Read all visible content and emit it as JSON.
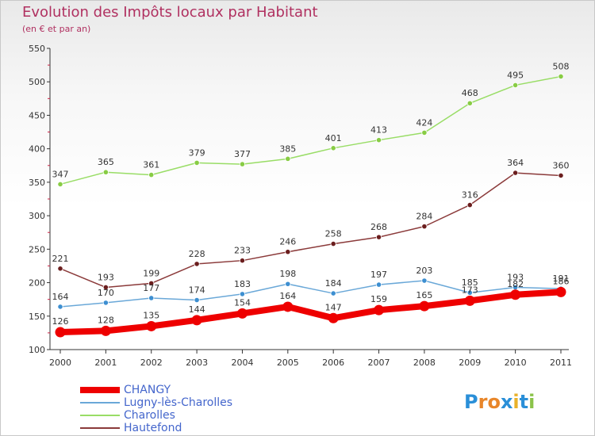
{
  "title": "Evolution des Impôts locaux par Habitant",
  "subtitle": "(en € et par an)",
  "logo": {
    "text": "Proxiti",
    "letters": [
      "P",
      "r",
      "o",
      "x",
      "i",
      "t",
      "i"
    ],
    "letter_colors": [
      "#2a8fd8",
      "#e8862a",
      "#e8862a",
      "#2a8fd8",
      "#e8b12a",
      "#2a8fd8",
      "#8bc34a"
    ]
  },
  "chart_data": {
    "type": "line",
    "categories": [
      "2000",
      "2001",
      "2002",
      "2003",
      "2004",
      "2005",
      "2006",
      "2007",
      "2008",
      "2009",
      "2010",
      "2011"
    ],
    "ylim": [
      100,
      550
    ],
    "yticks": [
      100,
      150,
      200,
      250,
      300,
      350,
      400,
      450,
      500,
      550
    ],
    "grid": false,
    "legend_position": "bottom-left",
    "series": [
      {
        "name": "Charolles",
        "color": "#99dd66",
        "marker_color": "#88cc44",
        "values": [
          347,
          365,
          361,
          379,
          377,
          385,
          401,
          413,
          424,
          468,
          495,
          508
        ],
        "labels": [
          "347",
          "365",
          "361",
          "379",
          "377",
          "385",
          "401",
          "413",
          "424",
          "468",
          "495",
          "508"
        ]
      },
      {
        "name": "Hautefond",
        "color": "#8b3a3a",
        "marker_color": "#6b1e1e",
        "values": [
          221,
          193,
          199,
          228,
          233,
          246,
          258,
          268,
          284,
          316,
          364,
          360
        ],
        "labels": [
          "221",
          "193",
          "199",
          "228",
          "233",
          "246",
          "258",
          "268",
          "284",
          "316",
          "364",
          "360"
        ]
      },
      {
        "name": "Lugny-lès-Charolles",
        "color": "#6aa8d8",
        "marker_color": "#3d8fd1",
        "values": [
          164,
          170,
          177,
          174,
          183,
          198,
          184,
          197,
          203,
          185,
          193,
          191
        ],
        "labels": [
          "164",
          "170",
          "177",
          "174",
          "183",
          "198",
          "184",
          "197",
          "203",
          "185",
          "193",
          "191"
        ]
      },
      {
        "name": "CHANGY",
        "color": "#ee0000",
        "marker_color": "#ee0000",
        "values": [
          126,
          128,
          135,
          144,
          154,
          164,
          147,
          159,
          165,
          173,
          182,
          186
        ],
        "labels": [
          "126",
          "128",
          "135",
          "144",
          "154",
          "164",
          "147",
          "159",
          "165",
          "173",
          "182",
          "186"
        ]
      }
    ],
    "legend_order": [
      "CHANGY",
      "Lugny-lès-Charolles",
      "Charolles",
      "Hautefond"
    ]
  }
}
